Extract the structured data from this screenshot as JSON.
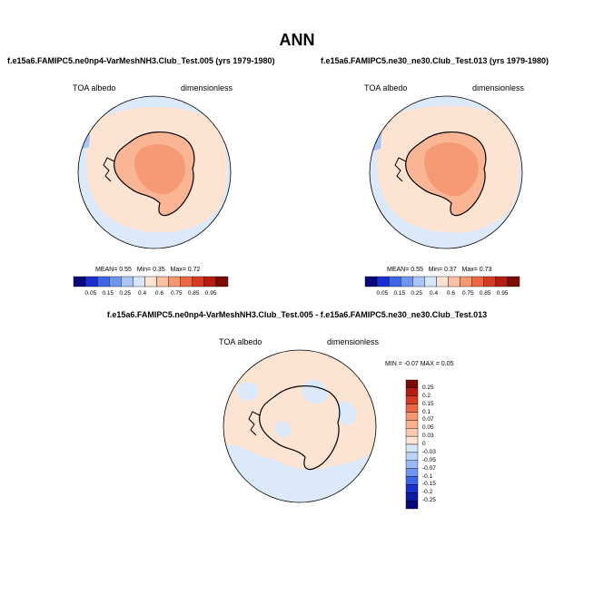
{
  "title": "ANN",
  "panels": [
    {
      "case_title": "f.e15a6.FAMIPC5.ne0np4-VarMeshNH3.Club_Test.005 (yrs 1979-1980)",
      "variable": "TOA albedo",
      "units": "dimensionless",
      "stats": {
        "mean_label": "MEAN=",
        "mean": "0.55",
        "min_label": "Min=",
        "min": "0.35",
        "max_label": "Max=",
        "max": "0.72"
      }
    },
    {
      "case_title": "f.e15a6.FAMIPC5.ne30_ne30.Club_Test.013 (yrs 1979-1980)",
      "variable": "TOA albedo",
      "units": "dimensionless",
      "stats": {
        "mean_label": "MEAN=",
        "mean": "0.55",
        "min_label": "Min=",
        "min": "0.37",
        "max_label": "Max=",
        "max": "0.73"
      }
    }
  ],
  "abs_colorbar": {
    "ticks": [
      "0.05",
      "0.15",
      "0.25",
      "0.4",
      "0.6",
      "0.75",
      "0.85",
      "0.95"
    ],
    "colors": [
      "#08087a",
      "#1a2fcf",
      "#3d66e6",
      "#6f95f0",
      "#a9c4f7",
      "#d6e6fb",
      "#fde3d2",
      "#fcc1a2",
      "#f8976f",
      "#ec6845",
      "#d53a22",
      "#b61d12",
      "#7a0b06"
    ]
  },
  "diff_panel": {
    "title": "f.e15a6.FAMIPC5.ne0np4-VarMeshNH3.Club_Test.005 - f.e15a6.FAMIPC5.ne30_ne30.Club_Test.013",
    "variable": "TOA albedo",
    "units": "dimensionless",
    "minmax": "MIN = -0.07 MAX = 0.05"
  },
  "diff_colorbar": {
    "ticks": [
      "0.25",
      "0.2",
      "0.15",
      "0.1",
      "0.07",
      "0.05",
      "0.03",
      "0",
      "-0.03",
      "-0.05",
      "-0.07",
      "-0.1",
      "-0.15",
      "-0.2",
      "-0.25"
    ],
    "colors": [
      "#7a0b06",
      "#b61d12",
      "#d53a22",
      "#ec6845",
      "#f8976f",
      "#fab08d",
      "#fcc9ae",
      "#fde3d2",
      "#d6e6fb",
      "#bcd3f8",
      "#9bb9f4",
      "#6f95f0",
      "#3d66e6",
      "#1a2fcf",
      "#0d1aa0",
      "#08087a"
    ]
  },
  "map_colors": {
    "ocean_light": "#dbe9fa",
    "ice_ring": "#fde3d2",
    "antarctica": "#f9b594",
    "antarctica_core": "#f59a74",
    "low_albedo": "#a9c4f7",
    "diff_neutral": "#fde3d2",
    "diff_neg": "#dbe9fa"
  }
}
